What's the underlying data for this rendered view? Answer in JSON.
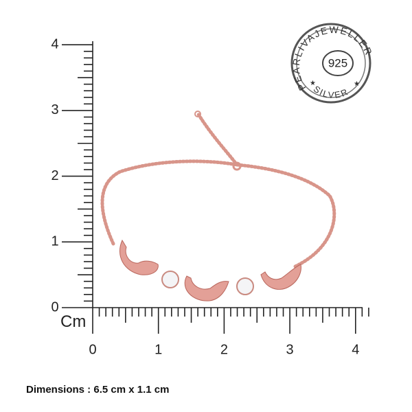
{
  "ruler": {
    "y_labels": [
      "0",
      "1",
      "2",
      "3",
      "4"
    ],
    "x_labels": [
      "0",
      "1",
      "2",
      "3",
      "4"
    ],
    "unit": "Cm"
  },
  "stamp": {
    "center": "925",
    "ring_top": "PEARLIVAJEWELLER",
    "ring_bottom": "SILVER"
  },
  "caption": "Dimensions : 6.5 cm x 1.1 cm"
}
